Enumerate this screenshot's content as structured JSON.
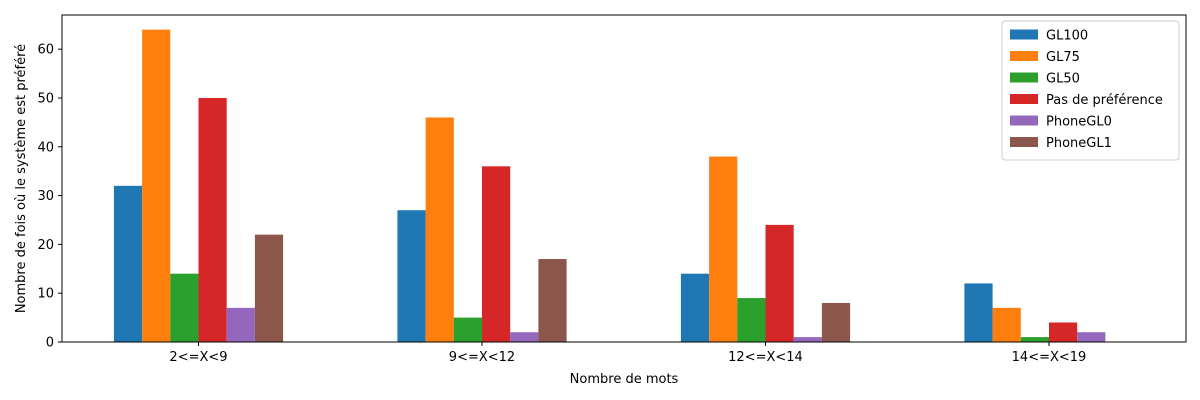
{
  "chart_data": {
    "type": "bar",
    "title": "",
    "xlabel": "Nombre de mots",
    "ylabel": "Nombre de fois où le système est préféré",
    "categories": [
      "2<=X<9",
      "9<=X<12",
      "12<=X<14",
      "14<=X<19"
    ],
    "ylim": [
      0,
      67
    ],
    "yticks": [
      0,
      10,
      20,
      30,
      40,
      50,
      60
    ],
    "grid": false,
    "legend_position": "top-right",
    "series": [
      {
        "name": "GL100",
        "color": "#1f77b4",
        "values": [
          32,
          27,
          14,
          12
        ]
      },
      {
        "name": "GL75",
        "color": "#ff7f0e",
        "values": [
          64,
          46,
          38,
          7
        ]
      },
      {
        "name": "GL50",
        "color": "#2ca02c",
        "values": [
          14,
          5,
          9,
          1
        ]
      },
      {
        "name": "Pas de préférence",
        "color": "#d62728",
        "values": [
          50,
          36,
          24,
          4
        ]
      },
      {
        "name": "PhoneGL0",
        "color": "#9467bd",
        "values": [
          7,
          2,
          1,
          2
        ]
      },
      {
        "name": "PhoneGL1",
        "color": "#8c564b",
        "values": [
          22,
          17,
          8,
          0
        ]
      }
    ]
  }
}
